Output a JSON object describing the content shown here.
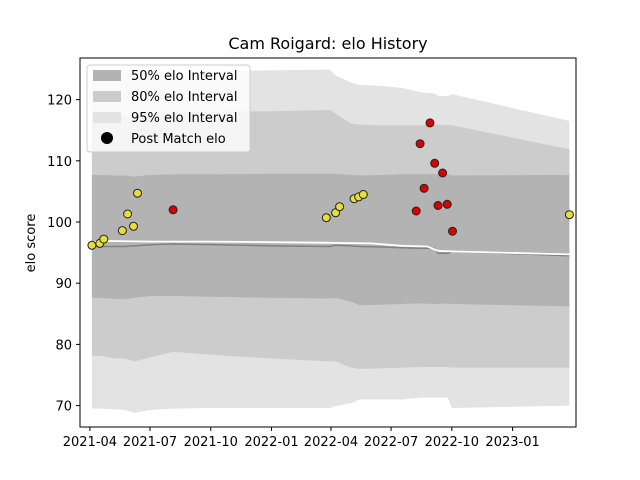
{
  "chart_data": {
    "type": "line",
    "title": "Cam Roigard: elo History",
    "xlabel": "",
    "ylabel": "elo score",
    "xlim": [
      "2021-03-17",
      "2023-04-07"
    ],
    "ylim": [
      66.5,
      126.8
    ],
    "x_ticks": [
      "2021-04",
      "2021-07",
      "2021-10",
      "2022-01",
      "2022-04",
      "2022-07",
      "2022-10",
      "2023-01"
    ],
    "y_ticks": [
      70,
      80,
      90,
      100,
      110,
      120
    ],
    "legend": {
      "placement": "top-left",
      "entries": [
        "50% elo Interval",
        "80% elo Interval",
        "95% elo Interval",
        "Post Match elo"
      ]
    },
    "colors": {
      "band_50": "#b3b3b3",
      "band_80": "#cccccc",
      "band_95": "#e3e3e3",
      "mean_line": "#808080",
      "elo_line": "#ffffff",
      "win": "#e6de3a",
      "loss": "#d90000"
    },
    "bands": {
      "dates": [
        "2021-04-04",
        "2021-04-18",
        "2021-05-10",
        "2021-05-24",
        "2021-06-07",
        "2021-06-21",
        "2021-07-05",
        "2021-08-05",
        "2021-10-01",
        "2022-01-01",
        "2022-03-31",
        "2022-04-07",
        "2022-05-01",
        "2022-05-15",
        "2022-06-20",
        "2022-07-18",
        "2022-08-15",
        "2022-09-05",
        "2022-09-10",
        "2022-09-25",
        "2022-10-01",
        "2023-03-28"
      ],
      "mean": [
        96.0,
        96.0,
        96.0,
        96.0,
        96.1,
        96.2,
        96.3,
        96.4,
        96.3,
        96.1,
        96.0,
        96.2,
        96.1,
        96.0,
        95.9,
        95.8,
        95.7,
        95.7,
        94.9,
        94.9,
        95.2,
        94.5
      ],
      "lo50": [
        87.6,
        87.6,
        87.4,
        87.4,
        87.6,
        87.8,
        87.9,
        87.9,
        87.8,
        87.6,
        87.5,
        87.6,
        87.0,
        86.4,
        86.5,
        86.6,
        86.7,
        86.6,
        86.6,
        86.7,
        86.6,
        86.2
      ],
      "hi50": [
        107.7,
        107.7,
        107.6,
        107.6,
        107.4,
        107.6,
        107.7,
        107.8,
        107.8,
        107.9,
        107.9,
        107.9,
        107.7,
        107.6,
        107.7,
        107.8,
        107.8,
        107.8,
        107.8,
        107.8,
        107.6,
        107.7
      ],
      "lo80": [
        78.1,
        78.1,
        77.7,
        77.7,
        77.2,
        77.6,
        78.0,
        78.8,
        78.3,
        77.7,
        77.2,
        77.3,
        76.2,
        76.0,
        76.1,
        76.2,
        76.3,
        76.3,
        76.3,
        76.3,
        76.2,
        76.2
      ],
      "hi80": [
        117.3,
        117.3,
        117.3,
        117.2,
        117.4,
        117.6,
        117.7,
        117.9,
        118.0,
        118.1,
        118.3,
        117.8,
        116.1,
        115.9,
        115.8,
        115.8,
        115.8,
        115.8,
        115.9,
        115.8,
        115.8,
        111.9
      ],
      "lo95": [
        69.5,
        69.5,
        69.4,
        69.3,
        68.8,
        69.1,
        69.3,
        69.5,
        69.6,
        69.6,
        69.6,
        69.9,
        70.4,
        71.0,
        71.0,
        71.0,
        71.3,
        71.3,
        71.3,
        71.3,
        69.6,
        70.0
      ],
      "hi95": [
        124.5,
        124.5,
        124.6,
        124.5,
        124.3,
        124.4,
        124.4,
        124.5,
        124.6,
        124.8,
        124.9,
        124.0,
        122.8,
        122.4,
        122.2,
        121.9,
        121.2,
        121.0,
        120.6,
        120.6,
        120.9,
        116.5
      ]
    },
    "elo_line": {
      "dates": [
        "2021-04-04",
        "2021-05-01",
        "2021-07-05",
        "2021-10-01",
        "2022-01-01",
        "2022-03-31",
        "2022-06-01",
        "2022-07-18",
        "2022-08-25",
        "2022-09-10",
        "2022-10-01",
        "2023-03-28"
      ],
      "values": [
        96.7,
        96.9,
        96.8,
        96.8,
        96.7,
        96.6,
        96.5,
        96.1,
        96.0,
        95.3,
        95.2,
        94.7
      ]
    },
    "series": [
      {
        "name": "Post Match elo",
        "points": [
          {
            "x": "2021-04-04",
            "y": 96.2,
            "result": "win"
          },
          {
            "x": "2021-04-16",
            "y": 96.5,
            "result": "win"
          },
          {
            "x": "2021-04-22",
            "y": 97.2,
            "result": "win"
          },
          {
            "x": "2021-05-20",
            "y": 98.6,
            "result": "win"
          },
          {
            "x": "2021-05-28",
            "y": 101.3,
            "result": "win"
          },
          {
            "x": "2021-06-06",
            "y": 99.3,
            "result": "win"
          },
          {
            "x": "2021-06-12",
            "y": 104.7,
            "result": "win"
          },
          {
            "x": "2021-08-05",
            "y": 102.0,
            "result": "loss"
          },
          {
            "x": "2022-03-25",
            "y": 100.7,
            "result": "win"
          },
          {
            "x": "2022-04-08",
            "y": 101.5,
            "result": "win"
          },
          {
            "x": "2022-04-14",
            "y": 102.5,
            "result": "win"
          },
          {
            "x": "2022-05-06",
            "y": 103.8,
            "result": "win"
          },
          {
            "x": "2022-05-13",
            "y": 104.1,
            "result": "win"
          },
          {
            "x": "2022-05-20",
            "y": 104.5,
            "result": "win"
          },
          {
            "x": "2022-08-08",
            "y": 101.8,
            "result": "loss"
          },
          {
            "x": "2022-08-14",
            "y": 112.8,
            "result": "loss"
          },
          {
            "x": "2022-08-20",
            "y": 105.5,
            "result": "loss"
          },
          {
            "x": "2022-08-29",
            "y": 116.2,
            "result": "loss"
          },
          {
            "x": "2022-09-05",
            "y": 109.6,
            "result": "loss"
          },
          {
            "x": "2022-09-10",
            "y": 102.7,
            "result": "loss"
          },
          {
            "x": "2022-09-17",
            "y": 108.0,
            "result": "loss"
          },
          {
            "x": "2022-09-24",
            "y": 102.9,
            "result": "loss"
          },
          {
            "x": "2022-10-02",
            "y": 98.5,
            "result": "loss"
          },
          {
            "x": "2023-03-28",
            "y": 101.2,
            "result": "win"
          }
        ]
      }
    ]
  }
}
